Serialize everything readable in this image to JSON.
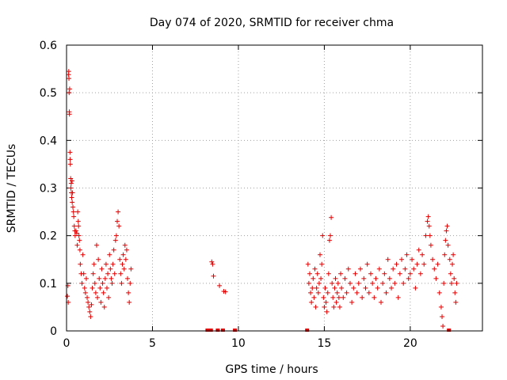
{
  "chart_data": {
    "type": "scatter",
    "title": "Day 074 of 2020, SRMTID for receiver chma",
    "xlabel": "GPS time / hours",
    "ylabel": "SRMTID / TECUs",
    "xlim": [
      0,
      24.2
    ],
    "ylim": [
      0,
      0.6
    ],
    "xticks": [
      0,
      5,
      10,
      15,
      20
    ],
    "xtick_labels": [
      "0",
      "5",
      "10",
      "15",
      "20"
    ],
    "yticks": [
      0,
      0.1,
      0.2,
      0.3,
      0.4,
      0.5,
      0.6
    ],
    "ytick_labels": [
      "0",
      "0.1",
      "0.2",
      "0.3",
      "0.4",
      "0.5",
      "0.6"
    ],
    "grid": true,
    "marker": "+",
    "color": "#e00000",
    "series": [
      {
        "name": "SRMTID",
        "points": [
          [
            0.05,
            0.073
          ],
          [
            0.08,
            0.095
          ],
          [
            0.1,
            0.06
          ],
          [
            0.12,
            0.538
          ],
          [
            0.13,
            0.545
          ],
          [
            0.14,
            0.53
          ],
          [
            0.15,
            0.5
          ],
          [
            0.16,
            0.46
          ],
          [
            0.17,
            0.455
          ],
          [
            0.18,
            0.508
          ],
          [
            0.2,
            0.375
          ],
          [
            0.21,
            0.36
          ],
          [
            0.22,
            0.35
          ],
          [
            0.24,
            0.32
          ],
          [
            0.25,
            0.3
          ],
          [
            0.27,
            0.31
          ],
          [
            0.28,
            0.29
          ],
          [
            0.3,
            0.28
          ],
          [
            0.32,
            0.315
          ],
          [
            0.33,
            0.27
          ],
          [
            0.35,
            0.29
          ],
          [
            0.37,
            0.26
          ],
          [
            0.4,
            0.25
          ],
          [
            0.42,
            0.24
          ],
          [
            0.45,
            0.22
          ],
          [
            0.48,
            0.21
          ],
          [
            0.5,
            0.2
          ],
          [
            0.55,
            0.21
          ],
          [
            0.6,
            0.205
          ],
          [
            0.62,
            0.18
          ],
          [
            0.65,
            0.25
          ],
          [
            0.68,
            0.23
          ],
          [
            0.7,
            0.22
          ],
          [
            0.72,
            0.2
          ],
          [
            0.75,
            0.19
          ],
          [
            0.78,
            0.17
          ],
          [
            0.8,
            0.14
          ],
          [
            0.85,
            0.12
          ],
          [
            0.9,
            0.1
          ],
          [
            0.95,
            0.16
          ],
          [
            1.0,
            0.12
          ],
          [
            1.05,
            0.09
          ],
          [
            1.1,
            0.08
          ],
          [
            1.15,
            0.11
          ],
          [
            1.2,
            0.07
          ],
          [
            1.25,
            0.06
          ],
          [
            1.3,
            0.05
          ],
          [
            1.35,
            0.04
          ],
          [
            1.4,
            0.03
          ],
          [
            1.45,
            0.055
          ],
          [
            1.5,
            0.09
          ],
          [
            1.55,
            0.12
          ],
          [
            1.6,
            0.14
          ],
          [
            1.65,
            0.1
          ],
          [
            1.7,
            0.08
          ],
          [
            1.75,
            0.18
          ],
          [
            1.8,
            0.07
          ],
          [
            1.85,
            0.15
          ],
          [
            1.9,
            0.11
          ],
          [
            1.95,
            0.09
          ],
          [
            2.0,
            0.06
          ],
          [
            2.05,
            0.13
          ],
          [
            2.1,
            0.1
          ],
          [
            2.15,
            0.08
          ],
          [
            2.2,
            0.05
          ],
          [
            2.25,
            0.11
          ],
          [
            2.3,
            0.14
          ],
          [
            2.35,
            0.09
          ],
          [
            2.4,
            0.12
          ],
          [
            2.45,
            0.07
          ],
          [
            2.5,
            0.16
          ],
          [
            2.55,
            0.13
          ],
          [
            2.6,
            0.11
          ],
          [
            2.65,
            0.1
          ],
          [
            2.7,
            0.14
          ],
          [
            2.75,
            0.17
          ],
          [
            2.8,
            0.12
          ],
          [
            2.85,
            0.19
          ],
          [
            2.9,
            0.2
          ],
          [
            2.95,
            0.23
          ],
          [
            3.0,
            0.25
          ],
          [
            3.05,
            0.22
          ],
          [
            3.1,
            0.15
          ],
          [
            3.15,
            0.12
          ],
          [
            3.2,
            0.1
          ],
          [
            3.25,
            0.14
          ],
          [
            3.3,
            0.16
          ],
          [
            3.35,
            0.13
          ],
          [
            3.4,
            0.18
          ],
          [
            3.45,
            0.15
          ],
          [
            3.5,
            0.17
          ],
          [
            3.55,
            0.11
          ],
          [
            3.6,
            0.08
          ],
          [
            3.65,
            0.06
          ],
          [
            3.7,
            0.1
          ],
          [
            3.75,
            0.13
          ],
          [
            8.2,
            0.0
          ],
          [
            8.4,
            0.0
          ],
          [
            8.45,
            0.145
          ],
          [
            8.5,
            0.14
          ],
          [
            8.55,
            0.115
          ],
          [
            8.8,
            0.0
          ],
          [
            8.9,
            0.095
          ],
          [
            9.1,
            0.0
          ],
          [
            9.15,
            0.083
          ],
          [
            9.25,
            0.082
          ],
          [
            9.8,
            0.0
          ],
          [
            14.0,
            0.0
          ],
          [
            14.05,
            0.14
          ],
          [
            14.1,
            0.1
          ],
          [
            14.15,
            0.12
          ],
          [
            14.2,
            0.08
          ],
          [
            14.25,
            0.06
          ],
          [
            14.3,
            0.09
          ],
          [
            14.35,
            0.11
          ],
          [
            14.4,
            0.07
          ],
          [
            14.45,
            0.13
          ],
          [
            14.5,
            0.05
          ],
          [
            14.55,
            0.09
          ],
          [
            14.6,
            0.12
          ],
          [
            14.65,
            0.08
          ],
          [
            14.7,
            0.1
          ],
          [
            14.75,
            0.16
          ],
          [
            14.8,
            0.11
          ],
          [
            14.85,
            0.14
          ],
          [
            14.9,
            0.2
          ],
          [
            14.95,
            0.07
          ],
          [
            15.0,
            0.05
          ],
          [
            15.05,
            0.09
          ],
          [
            15.1,
            0.06
          ],
          [
            15.15,
            0.04
          ],
          [
            15.2,
            0.08
          ],
          [
            15.25,
            0.12
          ],
          [
            15.3,
            0.19
          ],
          [
            15.35,
            0.2
          ],
          [
            15.4,
            0.238
          ],
          [
            15.45,
            0.1
          ],
          [
            15.5,
            0.07
          ],
          [
            15.55,
            0.05
          ],
          [
            15.6,
            0.09
          ],
          [
            15.65,
            0.11
          ],
          [
            15.7,
            0.06
          ],
          [
            15.75,
            0.08
          ],
          [
            15.8,
            0.1
          ],
          [
            15.85,
            0.07
          ],
          [
            15.9,
            0.05
          ],
          [
            15.95,
            0.12
          ],
          [
            16.0,
            0.09
          ],
          [
            16.1,
            0.07
          ],
          [
            16.2,
            0.11
          ],
          [
            16.3,
            0.08
          ],
          [
            16.4,
            0.13
          ],
          [
            16.5,
            0.1
          ],
          [
            16.6,
            0.06
          ],
          [
            16.7,
            0.09
          ],
          [
            16.8,
            0.12
          ],
          [
            16.9,
            0.08
          ],
          [
            17.0,
            0.1
          ],
          [
            17.1,
            0.13
          ],
          [
            17.2,
            0.07
          ],
          [
            17.3,
            0.11
          ],
          [
            17.4,
            0.09
          ],
          [
            17.5,
            0.14
          ],
          [
            17.6,
            0.08
          ],
          [
            17.7,
            0.12
          ],
          [
            17.8,
            0.1
          ],
          [
            17.9,
            0.07
          ],
          [
            18.0,
            0.11
          ],
          [
            18.1,
            0.09
          ],
          [
            18.2,
            0.13
          ],
          [
            18.3,
            0.06
          ],
          [
            18.4,
            0.1
          ],
          [
            18.5,
            0.12
          ],
          [
            18.6,
            0.08
          ],
          [
            18.7,
            0.15
          ],
          [
            18.8,
            0.11
          ],
          [
            18.9,
            0.09
          ],
          [
            19.0,
            0.13
          ],
          [
            19.1,
            0.1
          ],
          [
            19.2,
            0.14
          ],
          [
            19.3,
            0.07
          ],
          [
            19.4,
            0.12
          ],
          [
            19.5,
            0.15
          ],
          [
            19.6,
            0.1
          ],
          [
            19.7,
            0.13
          ],
          [
            19.8,
            0.16
          ],
          [
            19.9,
            0.11
          ],
          [
            20.0,
            0.12
          ],
          [
            20.1,
            0.15
          ],
          [
            20.2,
            0.13
          ],
          [
            20.3,
            0.09
          ],
          [
            20.4,
            0.14
          ],
          [
            20.5,
            0.17
          ],
          [
            20.6,
            0.12
          ],
          [
            20.7,
            0.16
          ],
          [
            20.8,
            0.14
          ],
          [
            20.9,
            0.2
          ],
          [
            21.0,
            0.23
          ],
          [
            21.05,
            0.24
          ],
          [
            21.1,
            0.22
          ],
          [
            21.15,
            0.2
          ],
          [
            21.2,
            0.18
          ],
          [
            21.3,
            0.15
          ],
          [
            21.4,
            0.13
          ],
          [
            21.5,
            0.11
          ],
          [
            21.6,
            0.14
          ],
          [
            21.7,
            0.08
          ],
          [
            21.8,
            0.05
          ],
          [
            21.85,
            0.03
          ],
          [
            21.9,
            0.01
          ],
          [
            21.95,
            0.1
          ],
          [
            22.0,
            0.16
          ],
          [
            22.05,
            0.19
          ],
          [
            22.1,
            0.21
          ],
          [
            22.15,
            0.22
          ],
          [
            22.2,
            0.18
          ],
          [
            22.25,
            0.0
          ],
          [
            22.3,
            0.15
          ],
          [
            22.35,
            0.12
          ],
          [
            22.4,
            0.1
          ],
          [
            22.45,
            0.14
          ],
          [
            22.5,
            0.16
          ],
          [
            22.55,
            0.11
          ],
          [
            22.6,
            0.08
          ],
          [
            22.65,
            0.06
          ],
          [
            22.7,
            0.1
          ]
        ]
      }
    ]
  }
}
